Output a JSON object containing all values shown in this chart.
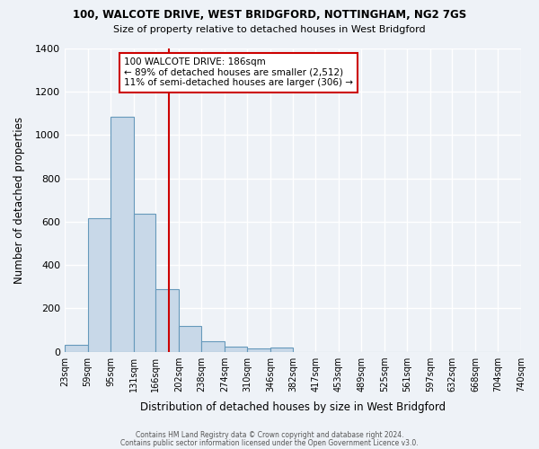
{
  "title1": "100, WALCOTE DRIVE, WEST BRIDGFORD, NOTTINGHAM, NG2 7GS",
  "title2": "Size of property relative to detached houses in West Bridgford",
  "xlabel": "Distribution of detached houses by size in West Bridgford",
  "ylabel": "Number of detached properties",
  "bar_edges": [
    23,
    59,
    95,
    131,
    166,
    202,
    238,
    274,
    310,
    346,
    382,
    417,
    453,
    489,
    525,
    561,
    597,
    632,
    668,
    704,
    740
  ],
  "bar_heights": [
    30,
    615,
    1085,
    635,
    290,
    120,
    48,
    22,
    15,
    20,
    0,
    0,
    0,
    0,
    0,
    0,
    0,
    0,
    0,
    0
  ],
  "bar_color": "#c8d8e8",
  "bar_edgecolor": "#6699bb",
  "vline_x": 186,
  "vline_color": "#cc0000",
  "ylim": [
    0,
    1400
  ],
  "yticks": [
    0,
    200,
    400,
    600,
    800,
    1000,
    1200,
    1400
  ],
  "annotation_title": "100 WALCOTE DRIVE: 186sqm",
  "annotation_line1": "← 89% of detached houses are smaller (2,512)",
  "annotation_line2": "11% of semi-detached houses are larger (306) →",
  "annotation_box_color": "#ffffff",
  "annotation_box_edgecolor": "#cc0000",
  "footer1": "Contains HM Land Registry data © Crown copyright and database right 2024.",
  "footer2": "Contains public sector information licensed under the Open Government Licence v3.0.",
  "background_color": "#eef2f7",
  "tick_labels": [
    "23sqm",
    "59sqm",
    "95sqm",
    "131sqm",
    "166sqm",
    "202sqm",
    "238sqm",
    "274sqm",
    "310sqm",
    "346sqm",
    "382sqm",
    "417sqm",
    "453sqm",
    "489sqm",
    "525sqm",
    "561sqm",
    "597sqm",
    "632sqm",
    "668sqm",
    "704sqm",
    "740sqm"
  ]
}
